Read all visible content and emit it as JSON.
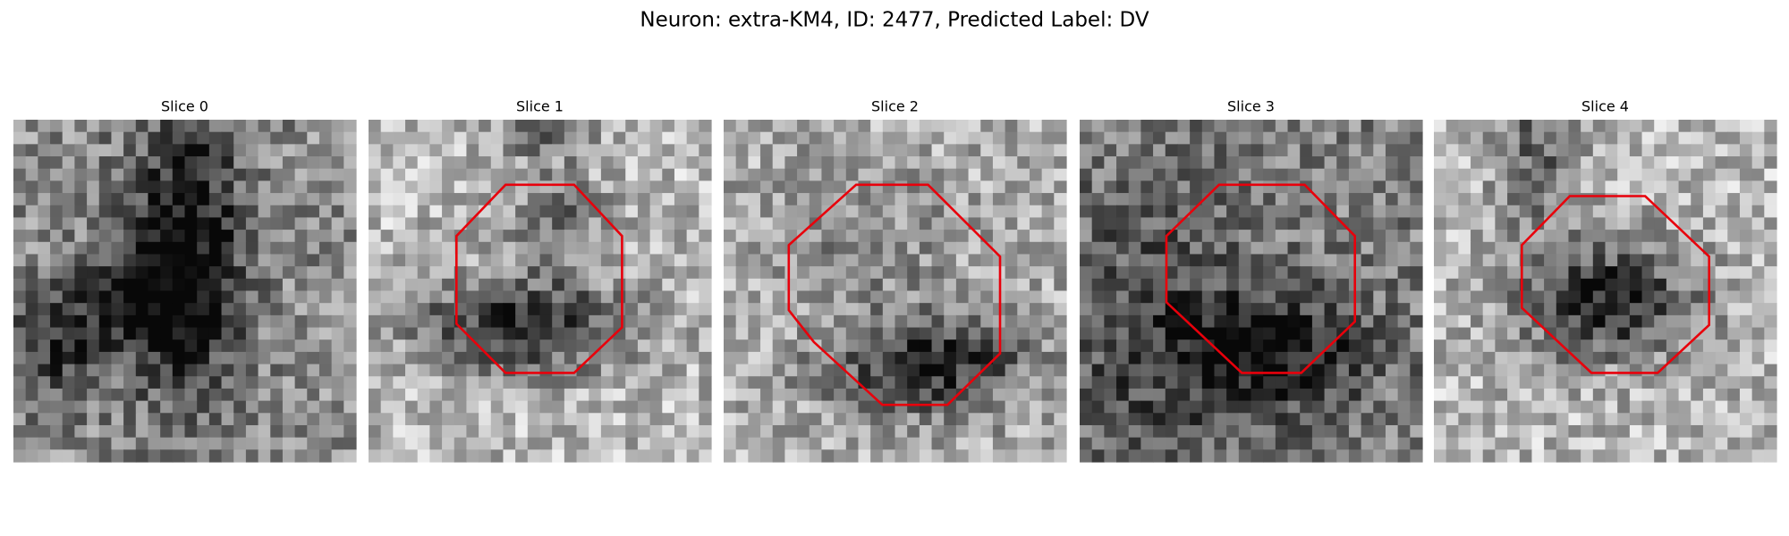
{
  "title": "Neuron: extra-KM4, ID: 2477, Predicted Label: DV",
  "panels": [
    {
      "title": "Slice 0"
    },
    {
      "title": "Slice 1"
    },
    {
      "title": "Slice 2"
    },
    {
      "title": "Slice 3"
    },
    {
      "title": "Slice 4"
    }
  ]
}
